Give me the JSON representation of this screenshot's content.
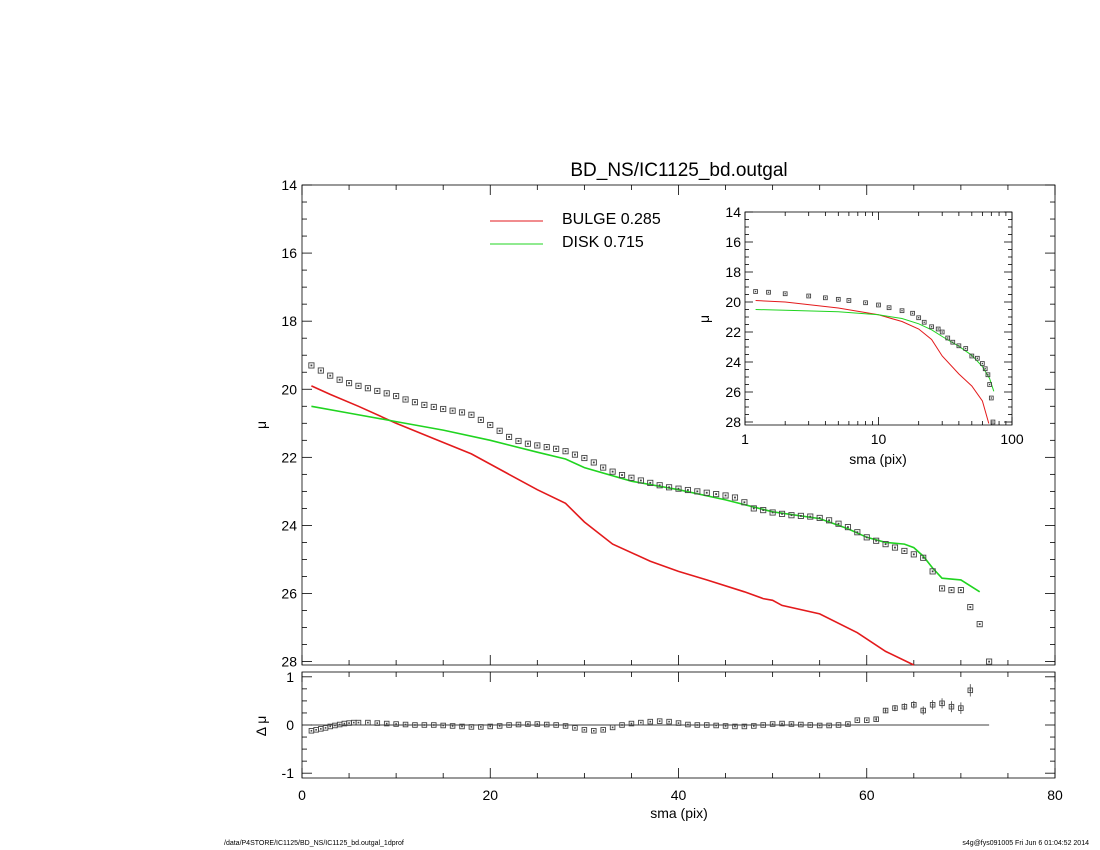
{
  "colors": {
    "bulge": "#e31a1c",
    "disk": "#20d420",
    "data": "#444444",
    "axes": "#000000"
  },
  "footer": {
    "left": "/data/P4STORE/IC1125/BD_NS/IC1125_bd.outgal_1dprof",
    "right": "s4g@fys091005  Fri Jun  6 01:04:52 2014"
  },
  "chart_data": [
    {
      "panel": "main",
      "type": "line",
      "title": "BD_NS/IC1125_bd.outgal",
      "xlabel": "",
      "ylabel": "μ",
      "xlim": [
        0,
        80
      ],
      "ylim": [
        28.1,
        14.0
      ],
      "y_inverted": true,
      "yticks": [
        "14",
        "16",
        "18",
        "20",
        "22",
        "24",
        "26",
        "28"
      ],
      "legend": [
        {
          "label": "BULGE  0.285",
          "color": "#e31a1c"
        },
        {
          "label": "DISK  0.715",
          "color": "#20d420"
        }
      ],
      "series": [
        {
          "name": "BULGE  0.285",
          "style": "line",
          "color": "#e31a1c",
          "x": [
            1,
            3,
            6,
            10,
            14,
            18,
            22,
            25,
            28,
            30,
            33,
            37,
            40,
            43,
            47,
            49,
            50,
            51,
            55,
            59,
            62,
            65
          ],
          "y": [
            19.9,
            20.15,
            20.5,
            21.0,
            21.45,
            21.9,
            22.5,
            22.95,
            23.35,
            23.9,
            24.55,
            25.05,
            25.35,
            25.6,
            25.95,
            26.15,
            26.2,
            26.35,
            26.6,
            27.15,
            27.7,
            28.1
          ]
        },
        {
          "name": "DISK  0.715",
          "style": "line",
          "color": "#20d420",
          "x": [
            1,
            5,
            10,
            15,
            20,
            25,
            28,
            30,
            35,
            40,
            45,
            50,
            55,
            58,
            60,
            62,
            64,
            65,
            66,
            67,
            68,
            70,
            72
          ],
          "y": [
            20.5,
            20.7,
            20.95,
            21.2,
            21.5,
            21.85,
            22.05,
            22.3,
            22.7,
            22.95,
            23.25,
            23.6,
            23.8,
            24.1,
            24.35,
            24.5,
            24.55,
            24.65,
            24.9,
            25.25,
            25.55,
            25.6,
            25.95
          ]
        },
        {
          "name": "",
          "style": "markers",
          "color": "#444444",
          "x": [
            1,
            2,
            3,
            4,
            5,
            6,
            7,
            8,
            9,
            10,
            11,
            12,
            13,
            14,
            15,
            16,
            17,
            18,
            19,
            20,
            21,
            22,
            23,
            24,
            25,
            26,
            27,
            28,
            29,
            30,
            31,
            32,
            33,
            34,
            35,
            36,
            37,
            38,
            39,
            40,
            41,
            42,
            43,
            44,
            45,
            46,
            47,
            48,
            49,
            50,
            51,
            52,
            53,
            54,
            55,
            56,
            57,
            58,
            59,
            60,
            61,
            62,
            63,
            64,
            65,
            66,
            67,
            68,
            69,
            70,
            71,
            72,
            73
          ],
          "y": [
            19.3,
            19.45,
            19.6,
            19.72,
            19.82,
            19.9,
            19.97,
            20.05,
            20.12,
            20.2,
            20.3,
            20.38,
            20.46,
            20.52,
            20.58,
            20.63,
            20.68,
            20.75,
            20.9,
            21.05,
            21.22,
            21.4,
            21.52,
            21.6,
            21.65,
            21.7,
            21.75,
            21.82,
            21.92,
            22.02,
            22.15,
            22.3,
            22.42,
            22.52,
            22.6,
            22.68,
            22.75,
            22.82,
            22.88,
            22.92,
            22.96,
            23.0,
            23.04,
            23.08,
            23.12,
            23.18,
            23.32,
            23.5,
            23.55,
            23.62,
            23.66,
            23.7,
            23.72,
            23.74,
            23.78,
            23.85,
            23.95,
            24.05,
            24.2,
            24.35,
            24.45,
            24.55,
            24.65,
            24.75,
            24.85,
            24.95,
            25.35,
            25.85,
            25.9,
            25.9,
            26.4,
            26.9,
            28.0
          ]
        }
      ]
    },
    {
      "panel": "inset",
      "type": "line",
      "title": "",
      "xlabel": "sma (pix)",
      "ylabel": "μ",
      "xscale": "log",
      "xlim": [
        1,
        100
      ],
      "ylim": [
        28.2,
        14.0
      ],
      "y_inverted": true,
      "xticks": [
        "1",
        "10",
        "100"
      ],
      "yticks": [
        "14",
        "16",
        "18",
        "20",
        "22",
        "24",
        "26",
        "28"
      ],
      "series": [
        {
          "name": "BULGE  0.285",
          "style": "line",
          "color": "#e31a1c",
          "x": [
            1.2,
            2,
            5,
            10,
            15,
            20,
            25,
            30,
            40,
            50,
            60,
            67
          ],
          "y": [
            19.9,
            20.0,
            20.4,
            20.85,
            21.3,
            21.8,
            22.5,
            23.6,
            24.8,
            25.6,
            26.6,
            28.1
          ]
        },
        {
          "name": "DISK  0.715",
          "style": "line",
          "color": "#20d420",
          "x": [
            1.2,
            2,
            5,
            10,
            15,
            20,
            25,
            30,
            40,
            50,
            60,
            68,
            73
          ],
          "y": [
            20.5,
            20.55,
            20.65,
            20.85,
            21.1,
            21.45,
            21.85,
            22.3,
            22.95,
            23.55,
            24.3,
            25.1,
            25.95
          ]
        },
        {
          "name": "",
          "style": "markers",
          "color": "#444444",
          "x": [
            1.2,
            1.5,
            2,
            3,
            4,
            5,
            6,
            8,
            10,
            12,
            15,
            18,
            20,
            22,
            25,
            28,
            30,
            33,
            36,
            40,
            45,
            50,
            55,
            60,
            63,
            66,
            68,
            70,
            72
          ],
          "y": [
            19.3,
            19.35,
            19.45,
            19.6,
            19.72,
            19.82,
            19.9,
            20.05,
            20.2,
            20.38,
            20.58,
            20.75,
            21.05,
            21.35,
            21.65,
            21.8,
            22.0,
            22.4,
            22.68,
            22.92,
            23.1,
            23.6,
            23.75,
            24.1,
            24.45,
            24.85,
            25.5,
            26.4,
            28.0
          ]
        }
      ]
    },
    {
      "panel": "residual",
      "type": "scatter",
      "title": "",
      "xlabel": "sma (pix)",
      "ylabel": "Δ μ",
      "xlim": [
        0,
        80
      ],
      "ylim": [
        -1.1,
        1.1
      ],
      "xticks": [
        "0",
        "20",
        "40",
        "60",
        "80"
      ],
      "yticks": [
        "1",
        "0",
        "-1"
      ],
      "zero_line": true,
      "series": [
        {
          "name": "",
          "style": "markers",
          "color": "#444444",
          "x": [
            1,
            1.5,
            2,
            2.5,
            3,
            3.5,
            4,
            4.5,
            5,
            5.5,
            6,
            7,
            8,
            9,
            10,
            11,
            12,
            13,
            14,
            15,
            16,
            17,
            18,
            19,
            20,
            21,
            22,
            23,
            24,
            25,
            26,
            27,
            28,
            29,
            30,
            31,
            32,
            33,
            34,
            35,
            36,
            37,
            38,
            39,
            40,
            41,
            42,
            43,
            44,
            45,
            46,
            47,
            48,
            49,
            50,
            51,
            52,
            53,
            54,
            55,
            56,
            57,
            58,
            59,
            60,
            61,
            62,
            63,
            64,
            65,
            66,
            67,
            68,
            69,
            70,
            71
          ],
          "y": [
            -0.12,
            -0.1,
            -0.08,
            -0.06,
            -0.03,
            -0.01,
            0.01,
            0.03,
            0.04,
            0.05,
            0.05,
            0.05,
            0.04,
            0.03,
            0.02,
            0.01,
            0.0,
            0.0,
            0.0,
            -0.01,
            -0.02,
            -0.03,
            -0.04,
            -0.04,
            -0.03,
            -0.02,
            0.0,
            0.01,
            0.02,
            0.02,
            0.01,
            0.0,
            -0.02,
            -0.06,
            -0.1,
            -0.12,
            -0.1,
            -0.05,
            0.0,
            0.03,
            0.05,
            0.07,
            0.08,
            0.07,
            0.04,
            0.01,
            0.0,
            0.0,
            -0.01,
            -0.02,
            -0.03,
            -0.03,
            -0.02,
            0.0,
            0.02,
            0.03,
            0.02,
            0.01,
            0.0,
            -0.01,
            -0.01,
            0.0,
            0.02,
            0.1,
            0.1,
            0.12,
            0.3,
            0.35,
            0.38,
            0.42,
            0.3,
            0.42,
            0.45,
            0.38,
            0.35,
            0.72
          ]
        }
      ]
    }
  ]
}
